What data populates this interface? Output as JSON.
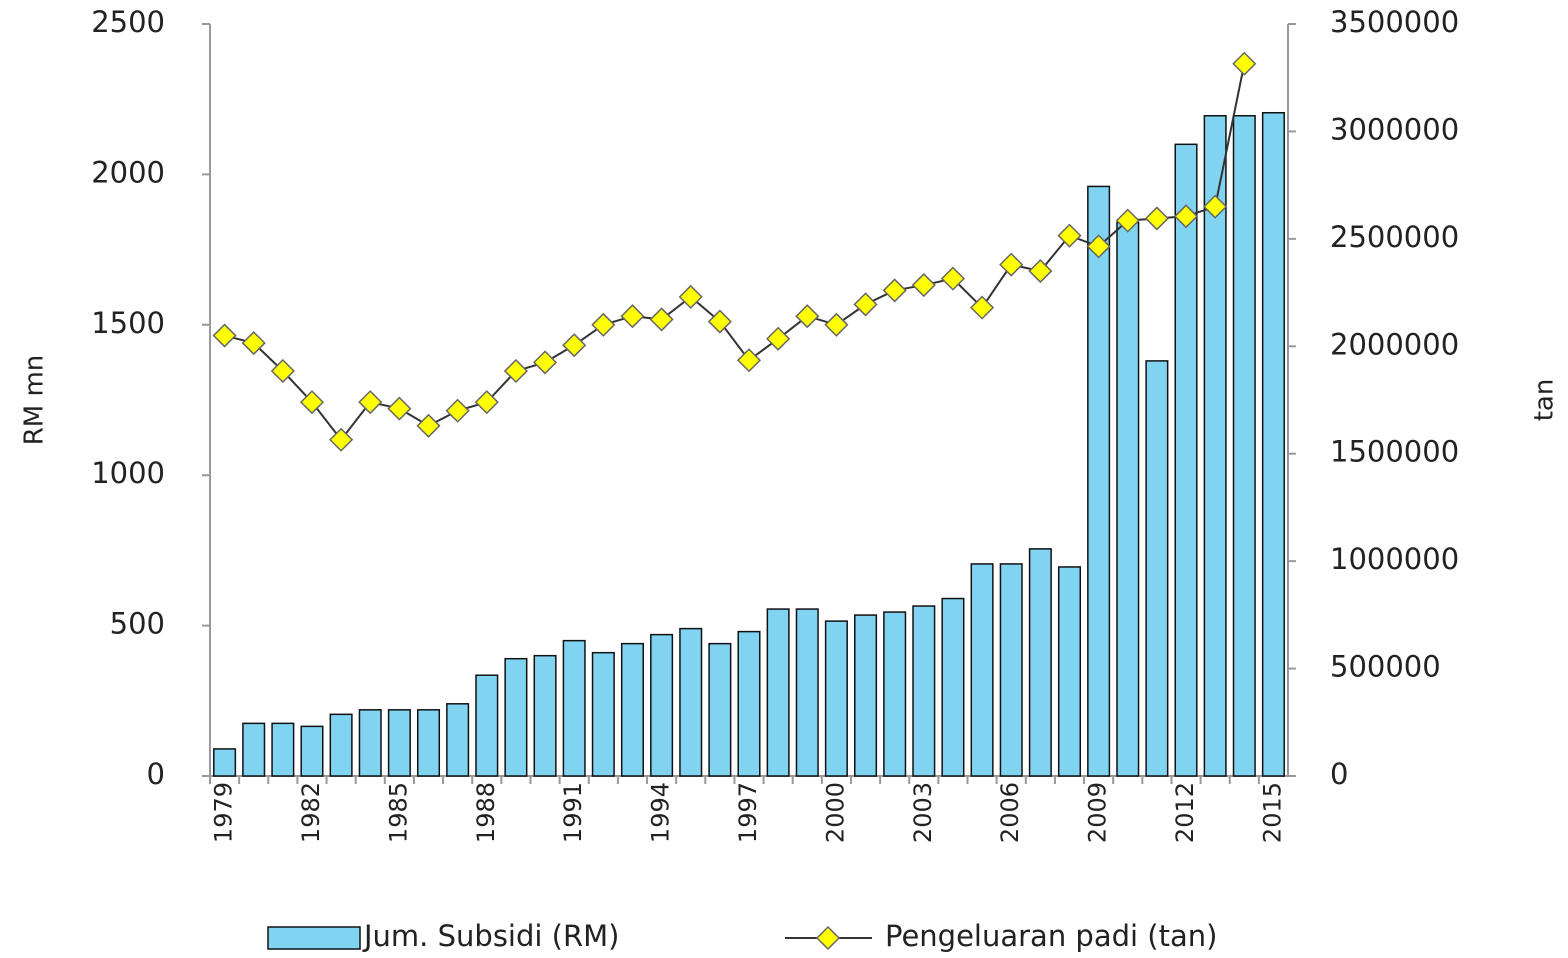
{
  "chart_data": {
    "type": "bar-line",
    "categories": [
      "1979",
      null,
      null,
      "1982",
      null,
      null,
      "1985",
      null,
      null,
      "1988",
      null,
      null,
      "1991",
      null,
      null,
      "1994",
      null,
      null,
      "1997",
      null,
      null,
      "2000",
      null,
      null,
      "2003",
      null,
      null,
      "2006",
      null,
      null,
      "2009",
      null,
      null,
      "2012",
      null,
      null,
      "2015"
    ],
    "series": [
      {
        "name": "Jum. Subsidi (RM)",
        "type": "bar",
        "color": "#80d4f2",
        "values": [
          90,
          175,
          175,
          165,
          205,
          220,
          220,
          220,
          240,
          335,
          390,
          400,
          450,
          410,
          440,
          470,
          490,
          440,
          480,
          555,
          555,
          515,
          535,
          545,
          565,
          590,
          705,
          705,
          755,
          695,
          1960,
          1840,
          1380,
          2100,
          2195,
          2195,
          2205
        ]
      },
      {
        "name": "Pengeluaran padi (tan)",
        "type": "line",
        "axis": "y2",
        "color": "#ffff00",
        "values": [
          2050000,
          2015000,
          1885000,
          1740000,
          1565000,
          1740000,
          1710000,
          1630000,
          1700000,
          1740000,
          1885000,
          1925000,
          2005000,
          2100000,
          2140000,
          2125000,
          2230000,
          2115000,
          1935000,
          2035000,
          2140000,
          2100000,
          2195000,
          2260000,
          2285000,
          2315000,
          2180000,
          2380000,
          2350000,
          2515000,
          2465000,
          2585000,
          2595000,
          2605000,
          2650000,
          3315000,
          null
        ]
      }
    ],
    "y_label": "RM mn",
    "y2_label": "tan",
    "ylim": [
      0,
      2500
    ],
    "yticks": [
      0,
      500,
      1000,
      1500,
      2000,
      2500
    ],
    "y2lim": [
      0,
      3500000
    ],
    "y2ticks": [
      0,
      500000,
      1000000,
      1500000,
      2000000,
      2500000,
      3000000,
      3500000
    ],
    "legend": "bottom"
  }
}
